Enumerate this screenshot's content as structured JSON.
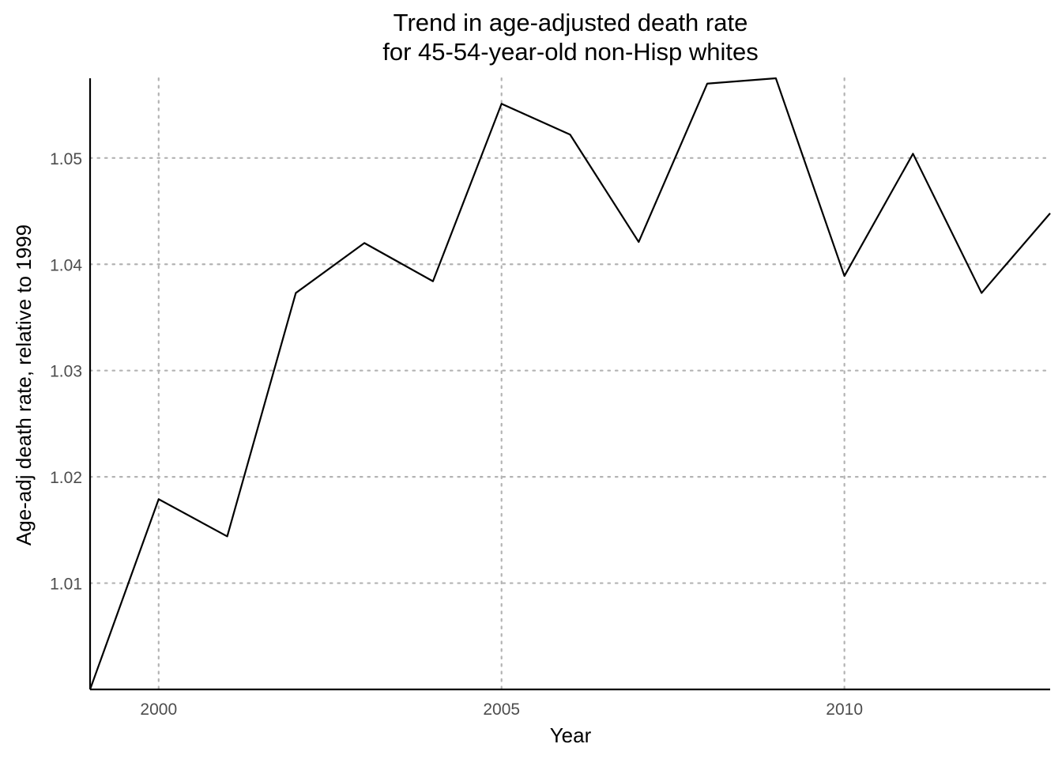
{
  "chart_data": {
    "type": "line",
    "title": "Trend in age-adjusted death rate",
    "subtitle": "for 45-54-year-old non-Hisp whites",
    "xlabel": "Year",
    "ylabel": "Age-adj death rate, relative to 1999",
    "x": [
      1999,
      2000,
      2001,
      2002,
      2003,
      2004,
      2005,
      2006,
      2007,
      2008,
      2009,
      2010,
      2011,
      2012,
      2013
    ],
    "series": [
      {
        "values": [
          1.0,
          1.0179,
          1.0144,
          1.0373,
          1.042,
          1.0384,
          1.0551,
          1.0522,
          1.0421,
          1.057,
          1.0575,
          1.0389,
          1.0504,
          1.0373,
          1.0448
        ]
      }
    ],
    "xlim": [
      1999,
      2013
    ],
    "ylim": [
      1.0,
      1.0575
    ],
    "x_ticks": [
      2000,
      2005,
      2010
    ],
    "y_ticks": [
      1.01,
      1.02,
      1.03,
      1.04,
      1.05
    ],
    "x_tick_labels": [
      "2000",
      "2005",
      "2010"
    ],
    "y_tick_labels": [
      "1.01",
      "1.02",
      "1.03",
      "1.04",
      "1.05"
    ],
    "grid": true,
    "grid_style": "dotted",
    "legend": "none",
    "colors": {
      "line": "#000000",
      "grid": "#b3b3b3",
      "tick_label": "#4d4d4d"
    }
  }
}
